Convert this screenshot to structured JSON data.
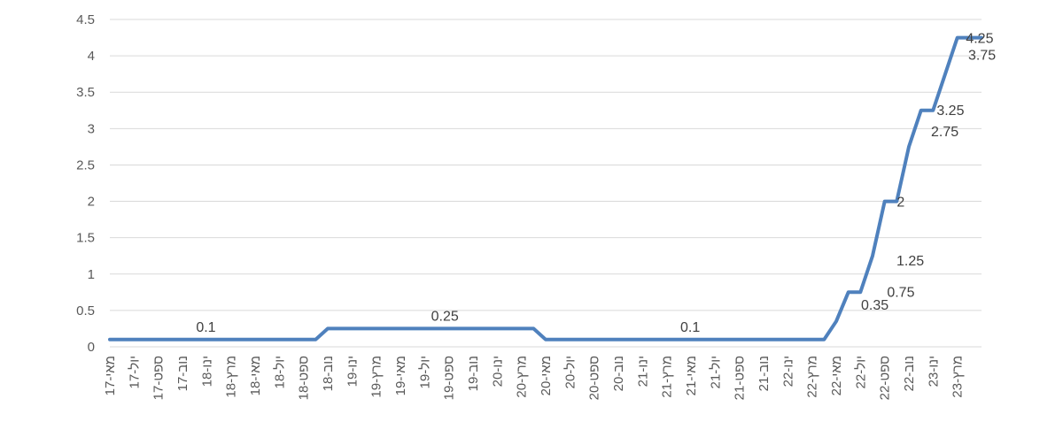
{
  "chart_data": {
    "type": "line",
    "title": "",
    "xlabel": "",
    "ylabel": "",
    "ylim": [
      0,
      4.5
    ],
    "yticks": [
      "0",
      "0.5",
      "1",
      "1.5",
      "2",
      "2.5",
      "3",
      "3.5",
      "4",
      "4.5"
    ],
    "grid": "horizontal",
    "line_color": "#4f81bd",
    "x_tick_labels": [
      "מאי-17",
      "יול-17",
      "ספט-17",
      "נוב-17",
      "ינו-18",
      "מרץ-18",
      "מאי-18",
      "יול-18",
      "ספט-18",
      "נוב-18",
      "ינו-19",
      "מרץ-19",
      "מאי-19",
      "יול-19",
      "ספט-19",
      "נוב-19",
      "ינו-20",
      "מרץ-20",
      "מאי-20",
      "יול-20",
      "ספט-20",
      "נוב-20",
      "ינו-21",
      "מרץ-21",
      "מאי-21",
      "יול-21",
      "ספט-21",
      "נוב-21",
      "ינו-22",
      "מרץ-22",
      "מאי-22",
      "יול-22",
      "ספט-22",
      "נוב-22",
      "ינו-23",
      "מרץ-23"
    ],
    "x": [
      "05-2017",
      "06-2017",
      "07-2017",
      "08-2017",
      "09-2017",
      "10-2017",
      "11-2017",
      "12-2017",
      "01-2018",
      "02-2018",
      "03-2018",
      "04-2018",
      "05-2018",
      "06-2018",
      "07-2018",
      "08-2018",
      "09-2018",
      "10-2018",
      "11-2018",
      "12-2018",
      "01-2019",
      "02-2019",
      "03-2019",
      "04-2019",
      "05-2019",
      "06-2019",
      "07-2019",
      "08-2019",
      "09-2019",
      "10-2019",
      "11-2019",
      "12-2019",
      "01-2020",
      "02-2020",
      "03-2020",
      "04-2020",
      "05-2020",
      "06-2020",
      "07-2020",
      "08-2020",
      "09-2020",
      "10-2020",
      "11-2020",
      "12-2020",
      "01-2021",
      "02-2021",
      "03-2021",
      "04-2021",
      "05-2021",
      "06-2021",
      "07-2021",
      "08-2021",
      "09-2021",
      "10-2021",
      "11-2021",
      "12-2021",
      "01-2022",
      "02-2022",
      "03-2022",
      "04-2022",
      "05-2022",
      "06-2022",
      "07-2022",
      "08-2022",
      "09-2022",
      "10-2022",
      "11-2022",
      "12-2022",
      "01-2023",
      "02-2023",
      "03-2023",
      "04-2023",
      "05-2023"
    ],
    "values": [
      0.1,
      0.1,
      0.1,
      0.1,
      0.1,
      0.1,
      0.1,
      0.1,
      0.1,
      0.1,
      0.1,
      0.1,
      0.1,
      0.1,
      0.1,
      0.1,
      0.1,
      0.1,
      0.25,
      0.25,
      0.25,
      0.25,
      0.25,
      0.25,
      0.25,
      0.25,
      0.25,
      0.25,
      0.25,
      0.25,
      0.25,
      0.25,
      0.25,
      0.25,
      0.25,
      0.25,
      0.1,
      0.1,
      0.1,
      0.1,
      0.1,
      0.1,
      0.1,
      0.1,
      0.1,
      0.1,
      0.1,
      0.1,
      0.1,
      0.1,
      0.1,
      0.1,
      0.1,
      0.1,
      0.1,
      0.1,
      0.1,
      0.1,
      0.1,
      0.1,
      0.35,
      0.75,
      0.75,
      1.25,
      2,
      2,
      2.75,
      3.25,
      3.25,
      3.75,
      4.25,
      4.25,
      4.25
    ],
    "data_labels": [
      {
        "text": "0.1",
        "index": 8
      },
      {
        "text": "0.25",
        "index": 28
      },
      {
        "text": "0.1",
        "index": 48
      },
      {
        "text": "0.35",
        "index": 60
      },
      {
        "text": "0.75",
        "index": 62
      },
      {
        "text": "1.25",
        "index": 63
      },
      {
        "text": "2",
        "index": 65
      },
      {
        "text": "2.75",
        "index": 66
      },
      {
        "text": "3.25",
        "index": 68
      },
      {
        "text": "3.75",
        "index": 69
      },
      {
        "text": "4.25",
        "index": 71
      }
    ]
  }
}
